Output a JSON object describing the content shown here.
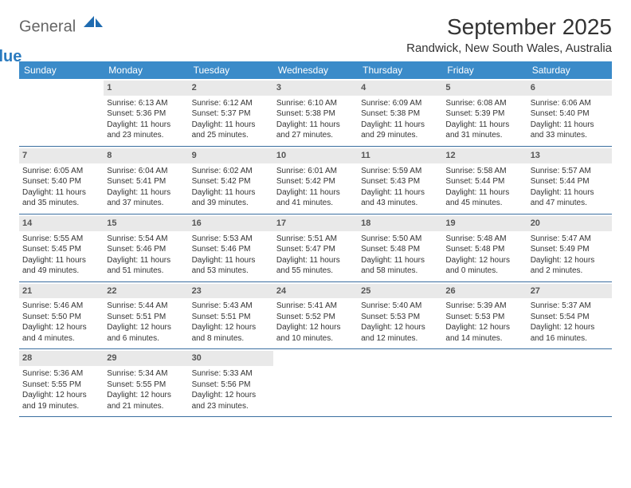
{
  "colors": {
    "header_bg": "#3b8bc9",
    "header_text": "#ffffff",
    "daynum_bg": "#e9e9e9",
    "daynum_text": "#555555",
    "row_border": "#3b6fa0",
    "body_text": "#333333",
    "logo_gray": "#666666",
    "logo_blue": "#2b7bbf"
  },
  "logo": {
    "word1": "General",
    "word2": "Blue"
  },
  "title": "September 2025",
  "location": "Randwick, New South Wales, Australia",
  "weekdays": [
    "Sunday",
    "Monday",
    "Tuesday",
    "Wednesday",
    "Thursday",
    "Friday",
    "Saturday"
  ],
  "weeks": [
    [
      {
        "n": "",
        "sr": "",
        "ss": "",
        "dl": ""
      },
      {
        "n": "1",
        "sr": "Sunrise: 6:13 AM",
        "ss": "Sunset: 5:36 PM",
        "dl": "Daylight: 11 hours and 23 minutes."
      },
      {
        "n": "2",
        "sr": "Sunrise: 6:12 AM",
        "ss": "Sunset: 5:37 PM",
        "dl": "Daylight: 11 hours and 25 minutes."
      },
      {
        "n": "3",
        "sr": "Sunrise: 6:10 AM",
        "ss": "Sunset: 5:38 PM",
        "dl": "Daylight: 11 hours and 27 minutes."
      },
      {
        "n": "4",
        "sr": "Sunrise: 6:09 AM",
        "ss": "Sunset: 5:38 PM",
        "dl": "Daylight: 11 hours and 29 minutes."
      },
      {
        "n": "5",
        "sr": "Sunrise: 6:08 AM",
        "ss": "Sunset: 5:39 PM",
        "dl": "Daylight: 11 hours and 31 minutes."
      },
      {
        "n": "6",
        "sr": "Sunrise: 6:06 AM",
        "ss": "Sunset: 5:40 PM",
        "dl": "Daylight: 11 hours and 33 minutes."
      }
    ],
    [
      {
        "n": "7",
        "sr": "Sunrise: 6:05 AM",
        "ss": "Sunset: 5:40 PM",
        "dl": "Daylight: 11 hours and 35 minutes."
      },
      {
        "n": "8",
        "sr": "Sunrise: 6:04 AM",
        "ss": "Sunset: 5:41 PM",
        "dl": "Daylight: 11 hours and 37 minutes."
      },
      {
        "n": "9",
        "sr": "Sunrise: 6:02 AM",
        "ss": "Sunset: 5:42 PM",
        "dl": "Daylight: 11 hours and 39 minutes."
      },
      {
        "n": "10",
        "sr": "Sunrise: 6:01 AM",
        "ss": "Sunset: 5:42 PM",
        "dl": "Daylight: 11 hours and 41 minutes."
      },
      {
        "n": "11",
        "sr": "Sunrise: 5:59 AM",
        "ss": "Sunset: 5:43 PM",
        "dl": "Daylight: 11 hours and 43 minutes."
      },
      {
        "n": "12",
        "sr": "Sunrise: 5:58 AM",
        "ss": "Sunset: 5:44 PM",
        "dl": "Daylight: 11 hours and 45 minutes."
      },
      {
        "n": "13",
        "sr": "Sunrise: 5:57 AM",
        "ss": "Sunset: 5:44 PM",
        "dl": "Daylight: 11 hours and 47 minutes."
      }
    ],
    [
      {
        "n": "14",
        "sr": "Sunrise: 5:55 AM",
        "ss": "Sunset: 5:45 PM",
        "dl": "Daylight: 11 hours and 49 minutes."
      },
      {
        "n": "15",
        "sr": "Sunrise: 5:54 AM",
        "ss": "Sunset: 5:46 PM",
        "dl": "Daylight: 11 hours and 51 minutes."
      },
      {
        "n": "16",
        "sr": "Sunrise: 5:53 AM",
        "ss": "Sunset: 5:46 PM",
        "dl": "Daylight: 11 hours and 53 minutes."
      },
      {
        "n": "17",
        "sr": "Sunrise: 5:51 AM",
        "ss": "Sunset: 5:47 PM",
        "dl": "Daylight: 11 hours and 55 minutes."
      },
      {
        "n": "18",
        "sr": "Sunrise: 5:50 AM",
        "ss": "Sunset: 5:48 PM",
        "dl": "Daylight: 11 hours and 58 minutes."
      },
      {
        "n": "19",
        "sr": "Sunrise: 5:48 AM",
        "ss": "Sunset: 5:48 PM",
        "dl": "Daylight: 12 hours and 0 minutes."
      },
      {
        "n": "20",
        "sr": "Sunrise: 5:47 AM",
        "ss": "Sunset: 5:49 PM",
        "dl": "Daylight: 12 hours and 2 minutes."
      }
    ],
    [
      {
        "n": "21",
        "sr": "Sunrise: 5:46 AM",
        "ss": "Sunset: 5:50 PM",
        "dl": "Daylight: 12 hours and 4 minutes."
      },
      {
        "n": "22",
        "sr": "Sunrise: 5:44 AM",
        "ss": "Sunset: 5:51 PM",
        "dl": "Daylight: 12 hours and 6 minutes."
      },
      {
        "n": "23",
        "sr": "Sunrise: 5:43 AM",
        "ss": "Sunset: 5:51 PM",
        "dl": "Daylight: 12 hours and 8 minutes."
      },
      {
        "n": "24",
        "sr": "Sunrise: 5:41 AM",
        "ss": "Sunset: 5:52 PM",
        "dl": "Daylight: 12 hours and 10 minutes."
      },
      {
        "n": "25",
        "sr": "Sunrise: 5:40 AM",
        "ss": "Sunset: 5:53 PM",
        "dl": "Daylight: 12 hours and 12 minutes."
      },
      {
        "n": "26",
        "sr": "Sunrise: 5:39 AM",
        "ss": "Sunset: 5:53 PM",
        "dl": "Daylight: 12 hours and 14 minutes."
      },
      {
        "n": "27",
        "sr": "Sunrise: 5:37 AM",
        "ss": "Sunset: 5:54 PM",
        "dl": "Daylight: 12 hours and 16 minutes."
      }
    ],
    [
      {
        "n": "28",
        "sr": "Sunrise: 5:36 AM",
        "ss": "Sunset: 5:55 PM",
        "dl": "Daylight: 12 hours and 19 minutes."
      },
      {
        "n": "29",
        "sr": "Sunrise: 5:34 AM",
        "ss": "Sunset: 5:55 PM",
        "dl": "Daylight: 12 hours and 21 minutes."
      },
      {
        "n": "30",
        "sr": "Sunrise: 5:33 AM",
        "ss": "Sunset: 5:56 PM",
        "dl": "Daylight: 12 hours and 23 minutes."
      },
      {
        "n": "",
        "sr": "",
        "ss": "",
        "dl": ""
      },
      {
        "n": "",
        "sr": "",
        "ss": "",
        "dl": ""
      },
      {
        "n": "",
        "sr": "",
        "ss": "",
        "dl": ""
      },
      {
        "n": "",
        "sr": "",
        "ss": "",
        "dl": ""
      }
    ]
  ]
}
